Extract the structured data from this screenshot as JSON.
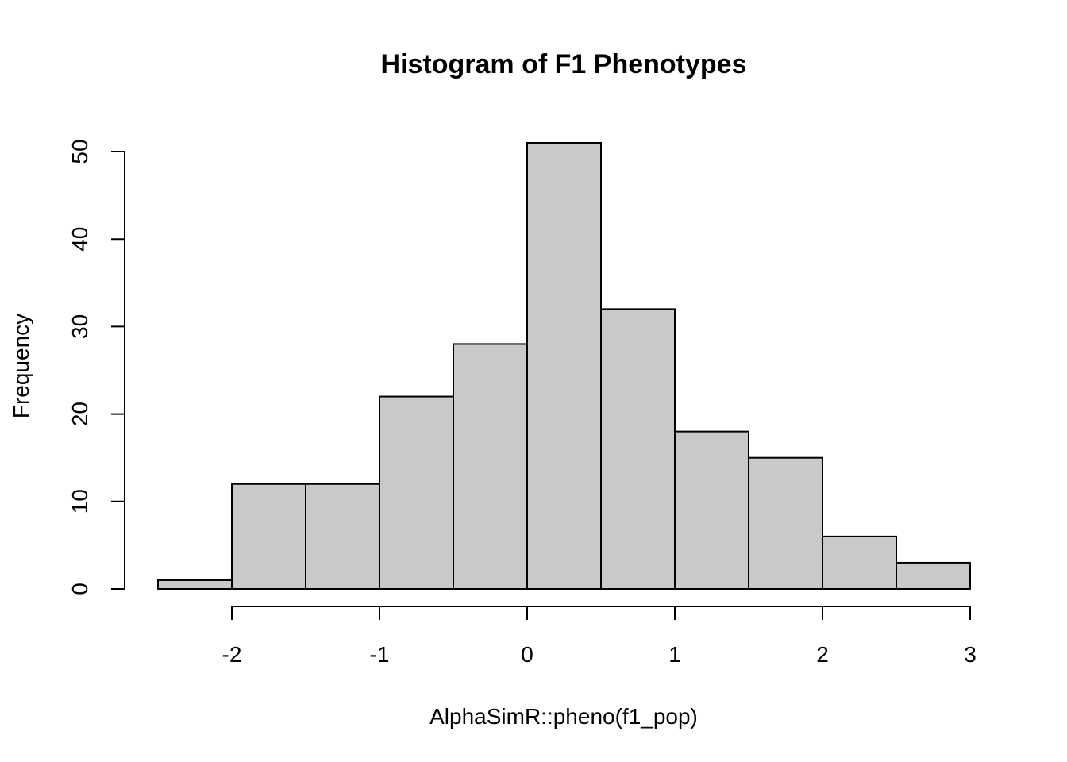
{
  "chart_data": {
    "type": "bar",
    "title": "Histogram of F1 Phenotypes",
    "xlabel": "AlphaSimR::pheno(f1_pop)",
    "ylabel": "Frequency",
    "bins": [
      {
        "x0": -2.5,
        "x1": -2.0,
        "count": 1
      },
      {
        "x0": -2.0,
        "x1": -1.5,
        "count": 12
      },
      {
        "x0": -1.5,
        "x1": -1.0,
        "count": 12
      },
      {
        "x0": -1.0,
        "x1": -0.5,
        "count": 22
      },
      {
        "x0": -0.5,
        "x1": 0.0,
        "count": 28
      },
      {
        "x0": 0.0,
        "x1": 0.5,
        "count": 51
      },
      {
        "x0": 0.5,
        "x1": 1.0,
        "count": 32
      },
      {
        "x0": 1.0,
        "x1": 1.5,
        "count": 18
      },
      {
        "x0": 1.5,
        "x1": 2.0,
        "count": 15
      },
      {
        "x0": 2.0,
        "x1": 2.5,
        "count": 6
      },
      {
        "x0": 2.5,
        "x1": 3.0,
        "count": 3
      }
    ],
    "xticks": [
      -2,
      -1,
      0,
      1,
      2,
      3
    ],
    "xtick_labels": [
      "-2",
      "-1",
      "0",
      "1",
      "2",
      "3"
    ],
    "yticks": [
      0,
      10,
      20,
      30,
      40,
      50
    ],
    "ytick_labels": [
      "0",
      "10",
      "20",
      "30",
      "40",
      "50"
    ],
    "xlim": [
      -2.5,
      3.0
    ],
    "ylim": [
      0,
      51
    ],
    "grid": false,
    "colors": {
      "bar_fill": "#c9c9c9",
      "bar_stroke": "#000000",
      "background": "#ffffff"
    }
  }
}
